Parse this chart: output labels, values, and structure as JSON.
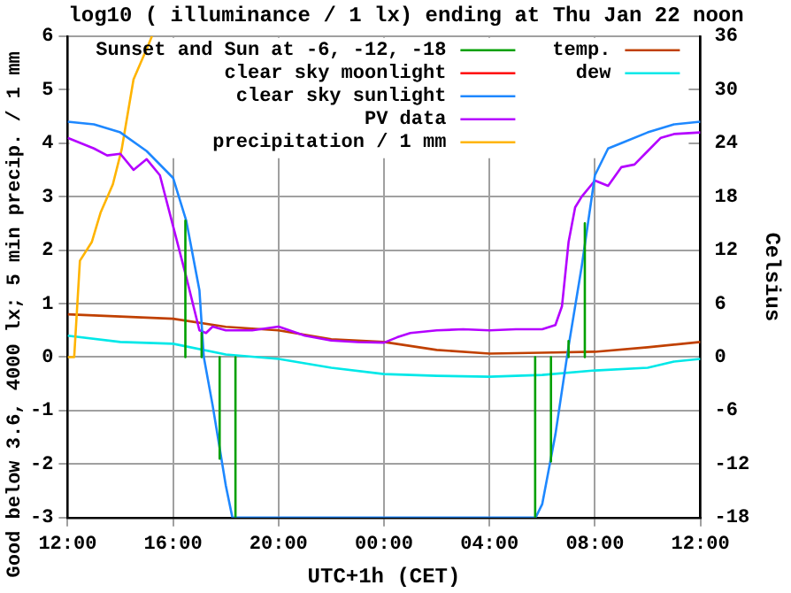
{
  "chart_data": {
    "type": "line",
    "title": "log10 ( illuminance / 1 lx) ending at Thu Jan 22 noon",
    "xlabel": "UTC+1h (CET)",
    "ylabel": "Good below 3.6, 4000 lx; 5 min precip. / 1 mm",
    "y2label": "Celsius",
    "xlim": [
      "--01-21T12:00",
      "--01-22T12:00"
    ],
    "xticks": [
      {
        "value": "--01-21T12:00",
        "label": "12:00"
      },
      {
        "value": "--01-21T16:00",
        "label": "16:00"
      },
      {
        "value": "--01-21T20:00",
        "label": "20:00"
      },
      {
        "value": "--01-22T00:00",
        "label": "00:00"
      },
      {
        "value": "--01-22T04:00",
        "label": "04:00"
      },
      {
        "value": "--01-22T08:00",
        "label": "08:00"
      },
      {
        "value": "--01-22T12:00",
        "label": "12:00"
      }
    ],
    "ylim": [
      -3,
      6
    ],
    "yticks": [
      -3,
      -2,
      -1,
      0,
      1,
      2,
      3,
      4,
      5,
      6
    ],
    "y2lim": [
      -18,
      36
    ],
    "y2ticks": [
      -18,
      -12,
      -6,
      0,
      6,
      12,
      18,
      24,
      30,
      36
    ],
    "grid": true,
    "legend": "top",
    "series": [
      {
        "name": "Sunset and Sun at -6, -12, -18",
        "color": "#00a000",
        "x": [
          "--01-21T16:28",
          "--01-21T16:28",
          null,
          "--01-21T17:05",
          "--01-21T17:05",
          null,
          "--01-21T17:46",
          "--01-21T17:46",
          null,
          "--01-21T18:22",
          "--01-21T18:22",
          null,
          "--01-22T05:44",
          "--01-22T05:44",
          null,
          "--01-22T06:20",
          "--01-22T06:20",
          null,
          "--01-22T07:00",
          "--01-22T07:00",
          null,
          "--01-22T07:37",
          "--01-22T07:37",
          null
        ],
        "values": [
          2.55,
          0,
          null,
          0.45,
          0,
          null,
          0,
          -1.9,
          null,
          0,
          -3,
          null,
          0,
          -3,
          null,
          0,
          -1.95,
          null,
          0.3,
          0,
          null,
          2.5,
          0,
          null
        ]
      },
      {
        "name": "clear sky moonlight",
        "color": "#ff0000"
      },
      {
        "name": "clear sky sunlight",
        "color": "#1e88ff",
        "x": [
          "--01-21T12:00",
          "--01-21T13:00",
          "--01-21T14:00",
          "--01-21T15:00",
          "--01-21T16:00",
          "--01-21T16:30",
          "--01-21T17:00",
          "--01-21T17:10",
          "--01-21T17:30",
          "--01-21T18:00",
          "--01-21T18:15",
          "--01-22T05:45",
          "--01-22T06:00",
          "--01-22T06:30",
          "--01-22T07:00",
          "--01-22T07:30",
          "--01-22T08:00",
          "--01-22T08:30",
          "--01-22T09:00",
          "--01-22T10:00",
          "--01-22T11:00",
          "--01-22T12:00"
        ],
        "values": [
          4.4,
          4.35,
          4.2,
          3.85,
          3.35,
          2.55,
          1.25,
          0,
          -0.9,
          -2.4,
          -3,
          -3,
          -2.75,
          -1.45,
          0.2,
          1.7,
          3.4,
          3.9,
          4.0,
          4.2,
          4.35,
          4.4
        ]
      },
      {
        "name": "PV data",
        "color": "#b400ff",
        "x": [
          "--01-21T12:00",
          "--01-21T13:00",
          "--01-21T13:30",
          "--01-21T14:00",
          "--01-21T14:30",
          "--01-21T15:00",
          "--01-21T15:30",
          "--01-21T16:00",
          "--01-21T16:30",
          "--01-21T17:00",
          "--01-21T17:15",
          "--01-21T17:30",
          "--01-21T18:00",
          "--01-21T19:00",
          "--01-21T20:00",
          "--01-21T21:00",
          "--01-21T22:00",
          "--01-21T23:00",
          "--01-22T00:00",
          "--01-22T00:30",
          "--01-22T01:00",
          "--01-22T02:00",
          "--01-22T03:00",
          "--01-22T04:00",
          "--01-22T05:00",
          "--01-22T06:00",
          "--01-22T06:30",
          "--01-22T06:45",
          "--01-22T07:00",
          "--01-22T07:15",
          "--01-22T07:30",
          "--01-22T08:00",
          "--01-22T08:30",
          "--01-22T09:00",
          "--01-22T09:30",
          "--01-22T10:00",
          "--01-22T10:30",
          "--01-22T11:00",
          "--01-22T12:00"
        ],
        "values": [
          4.1,
          3.9,
          3.77,
          3.8,
          3.5,
          3.7,
          3.4,
          2.45,
          1.5,
          0.5,
          0.45,
          0.57,
          0.5,
          0.5,
          0.57,
          0.4,
          0.31,
          0.28,
          0.27,
          0.37,
          0.45,
          0.5,
          0.52,
          0.5,
          0.52,
          0.52,
          0.6,
          0.95,
          2.15,
          2.8,
          3.0,
          3.3,
          3.2,
          3.55,
          3.6,
          3.85,
          4.1,
          4.17,
          4.2
        ]
      },
      {
        "name": "precipitation / 1 mm",
        "color": "#ffb400",
        "x": [
          "--01-21T12:00",
          "--01-21T12:15",
          "--01-21T12:28",
          "--01-21T12:55",
          "--01-21T13:15",
          "--01-21T13:43",
          "--01-21T14:03",
          "--01-21T14:30",
          "--01-21T15:04",
          "--01-21T15:12"
        ],
        "values": [
          0,
          0,
          1.8,
          2.15,
          2.7,
          3.23,
          3.88,
          5.19,
          5.84,
          6
        ]
      },
      {
        "name": "temp.",
        "color": "#c04000",
        "axis": "y2",
        "x": [
          "--01-21T12:00",
          "--01-21T16:00",
          "--01-21T18:00",
          "--01-21T20:00",
          "--01-21T22:00",
          "--01-22T00:00",
          "--01-22T02:00",
          "--01-22T04:00",
          "--01-22T06:00",
          "--01-22T08:00",
          "--01-22T10:00",
          "--01-22T12:00"
        ],
        "values": [
          4.8,
          4.3,
          3.4,
          3.0,
          2.0,
          1.7,
          0.8,
          0.4,
          0.5,
          0.6,
          1.1,
          1.7
        ]
      },
      {
        "name": "dew",
        "color": "#00e8e8",
        "axis": "y2",
        "x": [
          "--01-21T12:00",
          "--01-21T14:00",
          "--01-21T16:00",
          "--01-21T18:00",
          "--01-21T20:00",
          "--01-21T22:00",
          "--01-22T00:00",
          "--01-22T02:00",
          "--01-22T04:00",
          "--01-22T06:00",
          "--01-22T08:00",
          "--01-22T10:00",
          "--01-22T11:00",
          "--01-22T12:00"
        ],
        "values": [
          2.4,
          1.7,
          1.5,
          0.3,
          -0.2,
          -1.2,
          -1.9,
          -2.1,
          -2.2,
          -2.0,
          -1.5,
          -1.2,
          -0.5,
          -0.2
        ]
      }
    ]
  }
}
